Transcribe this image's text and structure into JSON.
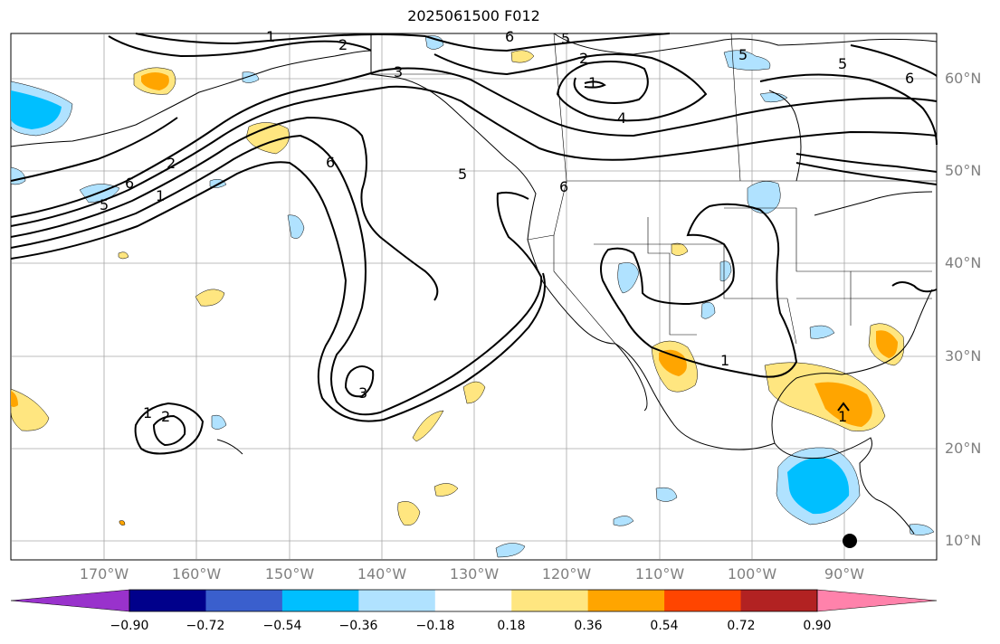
{
  "map": {
    "title": "2025061500 F012",
    "lat_labels": [
      {
        "text": "60°N"
      },
      {
        "text": "50°N"
      },
      {
        "text": "40°N"
      },
      {
        "text": "30°N"
      },
      {
        "text": "20°N"
      },
      {
        "text": "10°N"
      }
    ],
    "lon_labels": [
      {
        "text": "170°W"
      },
      {
        "text": "160°W"
      },
      {
        "text": "150°W"
      },
      {
        "text": "140°W"
      },
      {
        "text": "130°W"
      },
      {
        "text": "120°W"
      },
      {
        "text": "110°W"
      },
      {
        "text": "100°W"
      },
      {
        "text": "90°W"
      }
    ],
    "extent": {
      "lon": [
        -180,
        -80
      ],
      "lat": [
        8,
        65
      ]
    }
  },
  "colorbar": {
    "ticks": [
      "−0.90",
      "−0.72",
      "−0.54",
      "−0.36",
      "−0.18",
      "0.18",
      "0.36",
      "0.54",
      "0.72",
      "0.90"
    ],
    "colors": [
      "#9932cc",
      "#00008b",
      "#3a5fcd",
      "#00bfff",
      "#b0e2ff",
      "#ffffff",
      "#ffe680",
      "#ffa500",
      "#ff4500",
      "#b22222",
      "#ff82ab"
    ]
  },
  "contour_labels": [
    "1",
    "2",
    "3",
    "4",
    "5",
    "6"
  ],
  "colors": {
    "contour": "#000000",
    "grid": "#808080",
    "positive_fill": "#ffe680",
    "strong_positive_fill": "#ffa500",
    "negative_fill": "#b0e2ff",
    "strong_negative_fill": "#00bfff"
  }
}
